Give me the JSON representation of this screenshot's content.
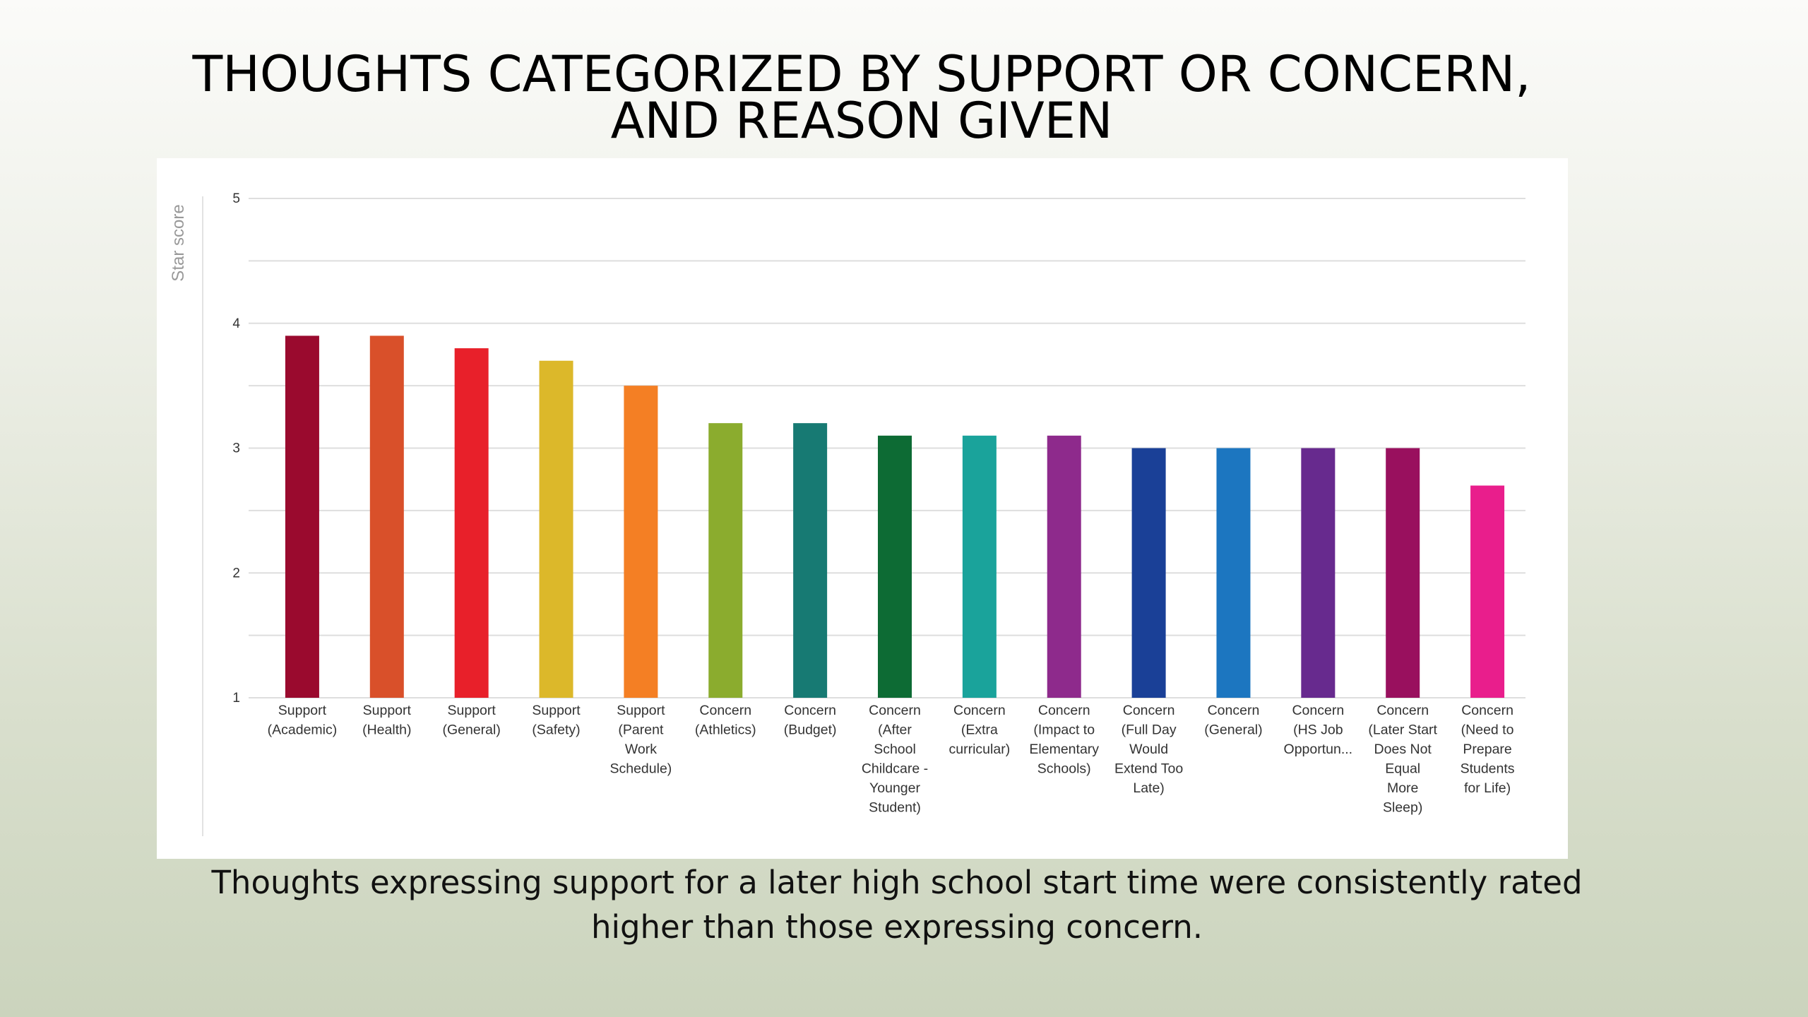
{
  "slide": {
    "title_line1": "THOUGHTS CATEGORIZED BY SUPPORT OR CONCERN,",
    "title_line2": "AND REASON GIVEN",
    "caption_line1": "Thoughts expressing support for a later high school start time were consistently rated",
    "caption_line2": "higher than those expressing concern."
  },
  "chart_data": {
    "type": "bar",
    "title": "THOUGHTS CATEGORIZED BY SUPPORT OR CONCERN, AND REASON GIVEN",
    "xlabel": "",
    "ylabel": "Star score",
    "ylim": [
      1,
      5
    ],
    "yticks": [
      "1",
      "2",
      "3",
      "4",
      "5"
    ],
    "grid": true,
    "categories": [
      "Support (Academic)",
      "Support (Health)",
      "Support (General)",
      "Support (Safety)",
      "Support (Parent Work Schedule)",
      "Concern (Athletics)",
      "Concern (Budget)",
      "Concern (After School Childcare - Younger Student)",
      "Concern (Extra curricular)",
      "Concern (Impact to Elementary Schools)",
      "Concern (Full Day Would Extend Too Late)",
      "Concern (General)",
      "Concern (HS Job Opportun...",
      "Concern (Later Start Does Not Equal More Sleep)",
      "Concern (Need to Prepare Students for Life)"
    ],
    "category_lines": [
      [
        "Support",
        "(Academic)"
      ],
      [
        "Support",
        "(Health)"
      ],
      [
        "Support",
        "(General)"
      ],
      [
        "Support",
        "(Safety)"
      ],
      [
        "Support",
        "(Parent",
        "Work",
        "Schedule)"
      ],
      [
        "Concern",
        "(Athletics)"
      ],
      [
        "Concern",
        "(Budget)"
      ],
      [
        "Concern",
        "(After",
        "School",
        "Childcare -",
        "Younger",
        "Student)"
      ],
      [
        "Concern",
        "(Extra",
        "curricular)"
      ],
      [
        "Concern",
        "(Impact to",
        "Elementary",
        "Schools)"
      ],
      [
        "Concern",
        "(Full Day",
        "Would",
        "Extend Too",
        "Late)"
      ],
      [
        "Concern",
        "(General)"
      ],
      [
        "Concern",
        "(HS Job",
        "Opportun..."
      ],
      [
        "Concern",
        "(Later Start",
        "Does Not",
        "Equal",
        "More",
        "Sleep)"
      ],
      [
        "Concern",
        "(Need to",
        "Prepare",
        "Students",
        "for Life)"
      ]
    ],
    "values": [
      3.9,
      3.9,
      3.8,
      3.7,
      3.5,
      3.2,
      3.2,
      3.1,
      3.1,
      3.1,
      3.0,
      3.0,
      3.0,
      3.0,
      2.7
    ],
    "colors": [
      "#9a0a2e",
      "#d9502a",
      "#e8202a",
      "#dcb82a",
      "#f47f24",
      "#8bac2e",
      "#177a73",
      "#0d6b34",
      "#1aa39b",
      "#8e2a8c",
      "#1a4097",
      "#1c76c0",
      "#672a8e",
      "#99105e",
      "#e91e8c"
    ]
  }
}
